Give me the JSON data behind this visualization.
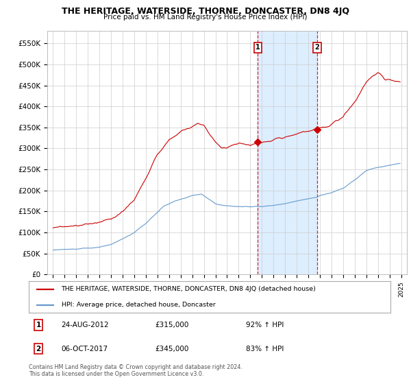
{
  "title": "THE HERITAGE, WATERSIDE, THORNE, DONCASTER, DN8 4JQ",
  "subtitle": "Price paid vs. HM Land Registry's House Price Index (HPI)",
  "ylabel_ticks": [
    "£0",
    "£50K",
    "£100K",
    "£150K",
    "£200K",
    "£250K",
    "£300K",
    "£350K",
    "£400K",
    "£450K",
    "£500K",
    "£550K"
  ],
  "ytick_values": [
    0,
    50000,
    100000,
    150000,
    200000,
    250000,
    300000,
    350000,
    400000,
    450000,
    500000,
    550000
  ],
  "ylim": [
    0,
    580000
  ],
  "sale1_price": 315000,
  "sale1_x": 2012.65,
  "sale2_price": 345000,
  "sale2_x": 2017.77,
  "annotation1_text": "24-AUG-2012",
  "annotation1_price": "£315,000",
  "annotation1_hpi": "92% ↑ HPI",
  "annotation2_text": "06-OCT-2017",
  "annotation2_price": "£345,000",
  "annotation2_hpi": "83% ↑ HPI",
  "legend1": "THE HERITAGE, WATERSIDE, THORNE, DONCASTER, DN8 4JQ (detached house)",
  "legend2": "HPI: Average price, detached house, Doncaster",
  "footer": "Contains HM Land Registry data © Crown copyright and database right 2024.\nThis data is licensed under the Open Government Licence v3.0.",
  "line1_color": "#cc0000",
  "line2_color": "#6699cc",
  "shading_color": "#ddeeff",
  "background_color": "#ffffff",
  "grid_color": "#cccccc",
  "xmin": 1994.5,
  "xmax": 2025.5
}
